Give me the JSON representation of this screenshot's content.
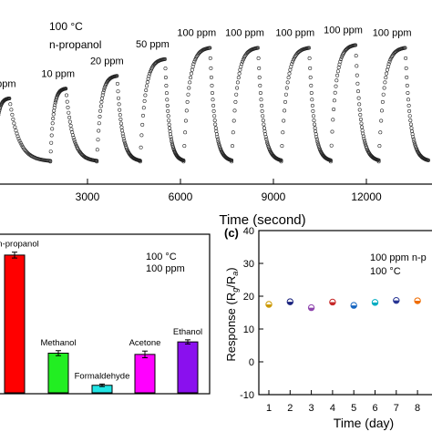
{
  "chart_data": [
    {
      "type": "line",
      "annotations": {
        "temperature": "100 °C",
        "gas": "n-propanol",
        "concentrations": [
          "5 ppm",
          "10 ppm",
          "20 ppm",
          "50 ppm",
          "100 ppm",
          "100 ppm",
          "100 ppm",
          "100 ppm",
          "100 ppm"
        ]
      },
      "xlabel": "Time (second)",
      "x_ticks": [
        3000,
        6000,
        9000,
        12000
      ],
      "xlim": [
        0,
        14000
      ],
      "series": [
        {
          "marker": "open-circle",
          "pulses": [
            {
              "on": 0,
              "off": 480,
              "level": 0.5
            },
            {
              "on": 1800,
              "off": 2300,
              "level": 0.57
            },
            {
              "on": 3300,
              "off": 3950,
              "level": 0.66
            },
            {
              "on": 4700,
              "off": 5500,
              "level": 0.78
            },
            {
              "on": 6100,
              "off": 6950,
              "level": 0.86
            },
            {
              "on": 7650,
              "off": 8500,
              "level": 0.86
            },
            {
              "on": 9250,
              "off": 10150,
              "level": 0.86
            },
            {
              "on": 10850,
              "off": 11650,
              "level": 0.88
            },
            {
              "on": 12400,
              "off": 13250,
              "level": 0.86
            }
          ],
          "baseline": 0.05
        }
      ]
    },
    {
      "type": "bar",
      "categories": [
        "n-propanol",
        "Methanol",
        "Formaldehyde",
        "Acetone",
        "Ethanol"
      ],
      "values": [
        33,
        9.5,
        1.8,
        9.2,
        12.2
      ],
      "errors": [
        0.7,
        0.6,
        0.3,
        0.8,
        0.5
      ],
      "colors": [
        "#ff0000",
        "#22ee22",
        "#22e5e5",
        "#ff00ff",
        "#8a10ee"
      ],
      "annotations": {
        "temperature": "100 °C",
        "concentration": "100 ppm"
      },
      "ylim": [
        0,
        38
      ]
    },
    {
      "type": "scatter",
      "panel_label": "(c)",
      "annotations": {
        "concentration": "100 ppm n-p",
        "temperature": "100 °C"
      },
      "xlabel": "Time (day)",
      "ylabel": "Response (R",
      "ylabel_sub_g": "g",
      "ylabel_mid": "/R",
      "ylabel_sub_a": "a",
      "ylabel_end": ")",
      "x": [
        1,
        2,
        3,
        4,
        5,
        6,
        7,
        8
      ],
      "y": [
        17.5,
        18.3,
        16.5,
        18.2,
        17.2,
        18.1,
        18.7,
        18.6
      ],
      "point_colors": [
        "#cc9900",
        "#1a237e",
        "#8e44ad",
        "#c62828",
        "#1565c0",
        "#00acc1",
        "#283593",
        "#ef6c00"
      ],
      "ylim": [
        -10,
        40
      ],
      "y_ticks": [
        -10,
        0,
        10,
        20,
        30,
        40
      ],
      "x_ticks": [
        1,
        2,
        3,
        4,
        5,
        6,
        7,
        8
      ]
    }
  ]
}
